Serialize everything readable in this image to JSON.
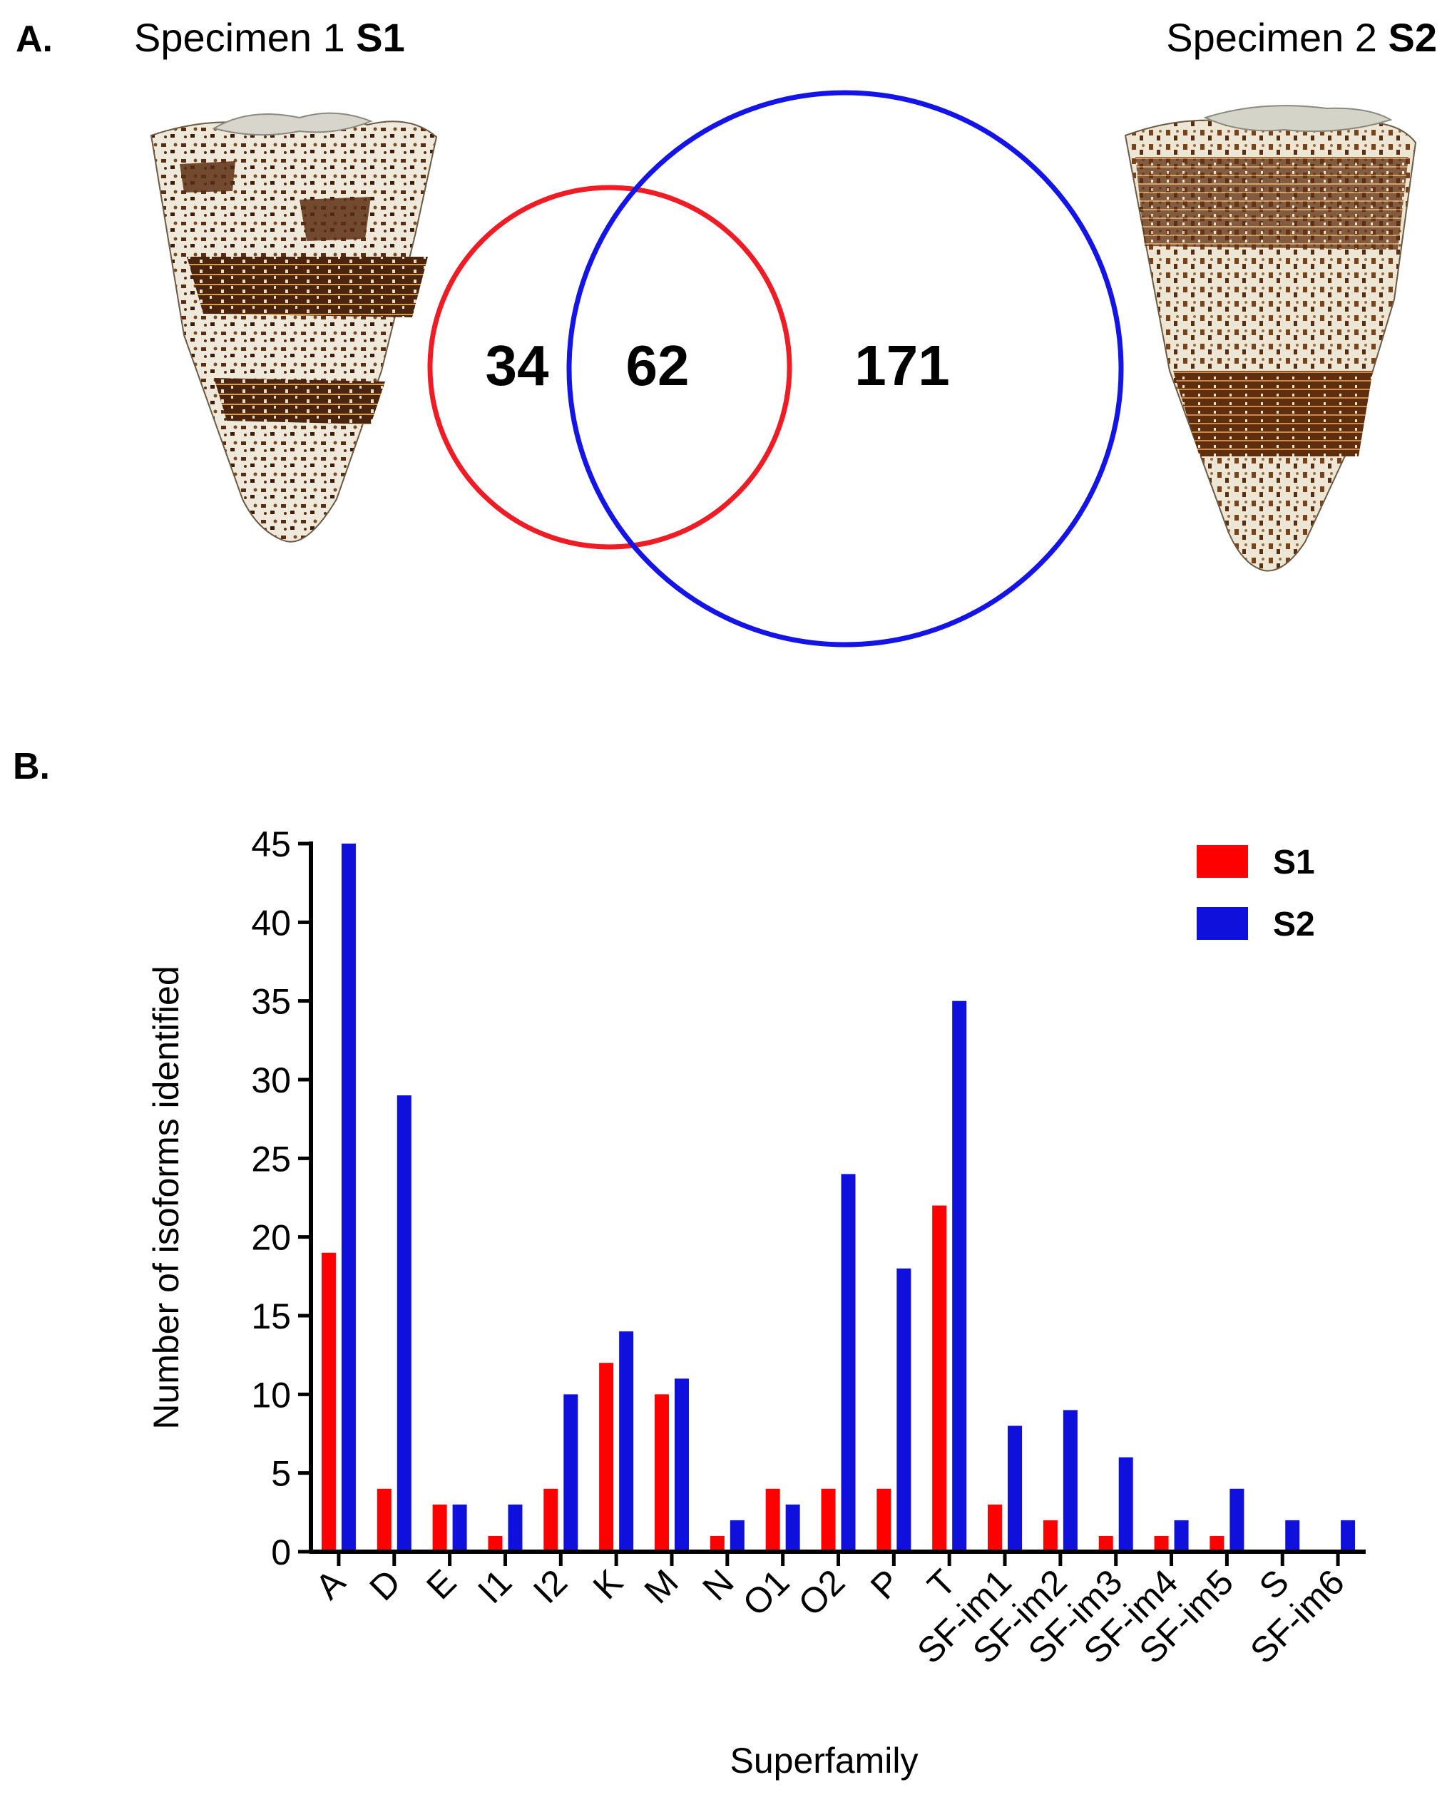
{
  "panel_a": {
    "label": "A.",
    "specimen_1": {
      "text": "Specimen 1 ",
      "code": "S1",
      "color": "#ee1c25"
    },
    "specimen_2": {
      "text": "Specimen 2 ",
      "code": "S2",
      "color": "#1414e6"
    },
    "venn": {
      "only_s1": "34",
      "shared": "62",
      "only_s2": "171"
    }
  },
  "panel_b": {
    "label": "B."
  },
  "chart_data": {
    "type": "bar",
    "title": "",
    "xlabel": "Superfamily",
    "ylabel": "Number of isoforms identified",
    "ylim": [
      0,
      45
    ],
    "yticks": [
      0,
      5,
      10,
      15,
      20,
      25,
      30,
      35,
      40,
      45
    ],
    "categories": [
      "A",
      "D",
      "E",
      "I1",
      "I2",
      "K",
      "M",
      "N",
      "O1",
      "O2",
      "P",
      "T",
      "SF-im1",
      "SF-im2",
      "SF-im3",
      "SF-im4",
      "SF-im5",
      "S",
      "SF-im6"
    ],
    "series": [
      {
        "name": "S1",
        "color": "#ff0000",
        "values": [
          19,
          4,
          3,
          1,
          4,
          12,
          10,
          1,
          4,
          4,
          4,
          22,
          3,
          2,
          1,
          1,
          1,
          0,
          0
        ]
      },
      {
        "name": "S2",
        "color": "#1010dd",
        "values": [
          45,
          29,
          3,
          3,
          10,
          14,
          11,
          2,
          3,
          24,
          18,
          35,
          8,
          9,
          6,
          2,
          4,
          2,
          2
        ]
      }
    ],
    "legend_position": "top-right",
    "grid": false
  }
}
